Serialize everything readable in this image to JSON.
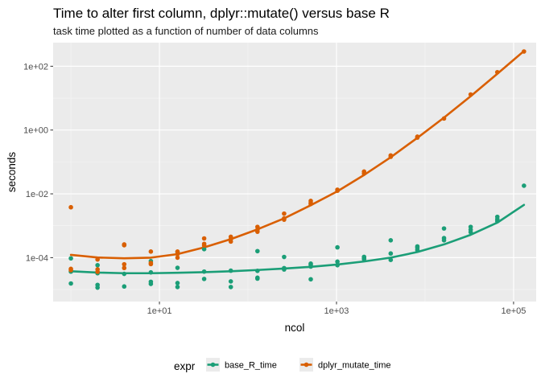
{
  "chart_data": {
    "type": "scatter",
    "title": "Time to alter first column, dplyr::mutate() versus base R",
    "subtitle": "task time plotted as a function of number of data columns",
    "xlabel": "ncol",
    "ylabel": "seconds",
    "x_scale": "log10",
    "y_scale": "log10",
    "xlim": [
      0.63,
      180000
    ],
    "ylim": [
      4.2e-06,
      550
    ],
    "x_ticks": [
      {
        "value": 10,
        "label": "1e+01"
      },
      {
        "value": 1000,
        "label": "1e+03"
      },
      {
        "value": 100000,
        "label": "1e+05"
      }
    ],
    "y_ticks": [
      {
        "value": 0.0001,
        "label": "1e-04"
      },
      {
        "value": 0.01,
        "label": "1e-02"
      },
      {
        "value": 1,
        "label": "1e+00"
      },
      {
        "value": 100,
        "label": "1e+02"
      }
    ],
    "grid": true,
    "legend_position": "bottom",
    "legend_title": "expr",
    "series": [
      {
        "name": "base_R_time",
        "color": "#1b9e77",
        "points": [
          [
            1,
            1.55e-05
          ],
          [
            1,
            3.65e-05
          ],
          [
            1,
            9.5e-05
          ],
          [
            2,
            1.15e-05
          ],
          [
            2,
            1.4e-05
          ],
          [
            2,
            3.25e-05
          ],
          [
            2,
            5.8e-05
          ],
          [
            4,
            1.25e-05
          ],
          [
            4,
            3.1e-05
          ],
          [
            4,
            0.00025
          ],
          [
            8,
            1.5e-05
          ],
          [
            8,
            1.75e-05
          ],
          [
            8,
            3.45e-05
          ],
          [
            8,
            7.8e-05
          ],
          [
            16,
            1.2e-05
          ],
          [
            16,
            1.6e-05
          ],
          [
            16,
            4.8e-05
          ],
          [
            16,
            0.00015
          ],
          [
            32,
            2.15e-05
          ],
          [
            32,
            3.65e-05
          ],
          [
            32,
            0.000185
          ],
          [
            64,
            1.2e-05
          ],
          [
            64,
            1.8e-05
          ],
          [
            64,
            3.9e-05
          ],
          [
            128,
            2.2e-05
          ],
          [
            128,
            2.35e-05
          ],
          [
            128,
            3.85e-05
          ],
          [
            128,
            0.00016
          ],
          [
            256,
            4.25e-05
          ],
          [
            256,
            4.7e-05
          ],
          [
            256,
            0.000105
          ],
          [
            512,
            2.1e-05
          ],
          [
            512,
            5.25e-05
          ],
          [
            512,
            6e-05
          ],
          [
            512,
            6.5e-05
          ],
          [
            1024,
            5.8e-05
          ],
          [
            1024,
            7.5e-05
          ],
          [
            1024,
            0.00021
          ],
          [
            2048,
            9e-05
          ],
          [
            2048,
            9.8e-05
          ],
          [
            2048,
            0.000106
          ],
          [
            4096,
            8.5e-05
          ],
          [
            4096,
            0.000135
          ],
          [
            4096,
            0.00035
          ],
          [
            8192,
            0.000175
          ],
          [
            8192,
            0.000205
          ],
          [
            8192,
            0.000225
          ],
          [
            16384,
            0.00035
          ],
          [
            16384,
            0.00041
          ],
          [
            16384,
            0.00082
          ],
          [
            32768,
            0.00063
          ],
          [
            32768,
            0.00075
          ],
          [
            32768,
            0.00092
          ],
          [
            65536,
            0.0014
          ],
          [
            65536,
            0.0016
          ],
          [
            65536,
            0.0019
          ],
          [
            131072,
            0.018
          ]
        ],
        "fit": [
          [
            1,
            3.75e-05
          ],
          [
            2,
            3.4e-05
          ],
          [
            4,
            3.25e-05
          ],
          [
            8,
            3.25e-05
          ],
          [
            16,
            3.35e-05
          ],
          [
            32,
            3.5e-05
          ],
          [
            64,
            3.75e-05
          ],
          [
            128,
            4.1e-05
          ],
          [
            256,
            4.55e-05
          ],
          [
            512,
            5.15e-05
          ],
          [
            1024,
            6.1e-05
          ],
          [
            2048,
            7.6e-05
          ],
          [
            4096,
            0.0001
          ],
          [
            8192,
            0.00015
          ],
          [
            16384,
            0.00026
          ],
          [
            32768,
            0.00052
          ],
          [
            65536,
            0.00125
          ],
          [
            131072,
            0.0045
          ]
        ]
      },
      {
        "name": "dplyr_mutate_time",
        "color": "#d95f02",
        "points": [
          [
            1,
            4.05e-05
          ],
          [
            1,
            4.45e-05
          ],
          [
            1,
            0.0038
          ],
          [
            2,
            3.6e-05
          ],
          [
            2,
            4.3e-05
          ],
          [
            2,
            8.75e-05
          ],
          [
            4,
            4.75e-05
          ],
          [
            4,
            6.2e-05
          ],
          [
            4,
            0.000245
          ],
          [
            4,
            0.00026
          ],
          [
            8,
            6.3e-05
          ],
          [
            8,
            6.8e-05
          ],
          [
            8,
            0.000155
          ],
          [
            16,
            0.0001
          ],
          [
            16,
            0.00013
          ],
          [
            16,
            0.000155
          ],
          [
            32,
            0.00024
          ],
          [
            32,
            0.00027
          ],
          [
            32,
            0.0004
          ],
          [
            64,
            0.00032
          ],
          [
            64,
            0.00038
          ],
          [
            64,
            0.00045
          ],
          [
            128,
            0.00065
          ],
          [
            128,
            0.00075
          ],
          [
            128,
            0.00092
          ],
          [
            256,
            0.00155
          ],
          [
            256,
            0.0017
          ],
          [
            256,
            0.0024
          ],
          [
            512,
            0.0048
          ],
          [
            512,
            0.0052
          ],
          [
            512,
            0.006
          ],
          [
            1024,
            0.0125
          ],
          [
            1024,
            0.0135
          ],
          [
            2048,
            0.043
          ],
          [
            2048,
            0.05
          ],
          [
            4096,
            0.145
          ],
          [
            4096,
            0.16
          ],
          [
            8192,
            0.58
          ],
          [
            8192,
            0.62
          ],
          [
            16384,
            2.3
          ],
          [
            32768,
            13
          ],
          [
            65536,
            65
          ],
          [
            131072,
            290
          ]
        ],
        "fit": [
          [
            1,
            0.000122
          ],
          [
            2,
            0.000101
          ],
          [
            4,
            9.55e-05
          ],
          [
            8,
            0.0001
          ],
          [
            16,
            0.000129
          ],
          [
            32,
            0.00021
          ],
          [
            64,
            0.00038
          ],
          [
            128,
            0.00077
          ],
          [
            256,
            0.0017
          ],
          [
            512,
            0.0044
          ],
          [
            1024,
            0.012
          ],
          [
            2048,
            0.039
          ],
          [
            4096,
            0.14
          ],
          [
            8192,
            0.57
          ],
          [
            16384,
            2.45
          ],
          [
            32768,
            11.5
          ],
          [
            65536,
            58
          ],
          [
            131072,
            300
          ]
        ]
      }
    ]
  }
}
